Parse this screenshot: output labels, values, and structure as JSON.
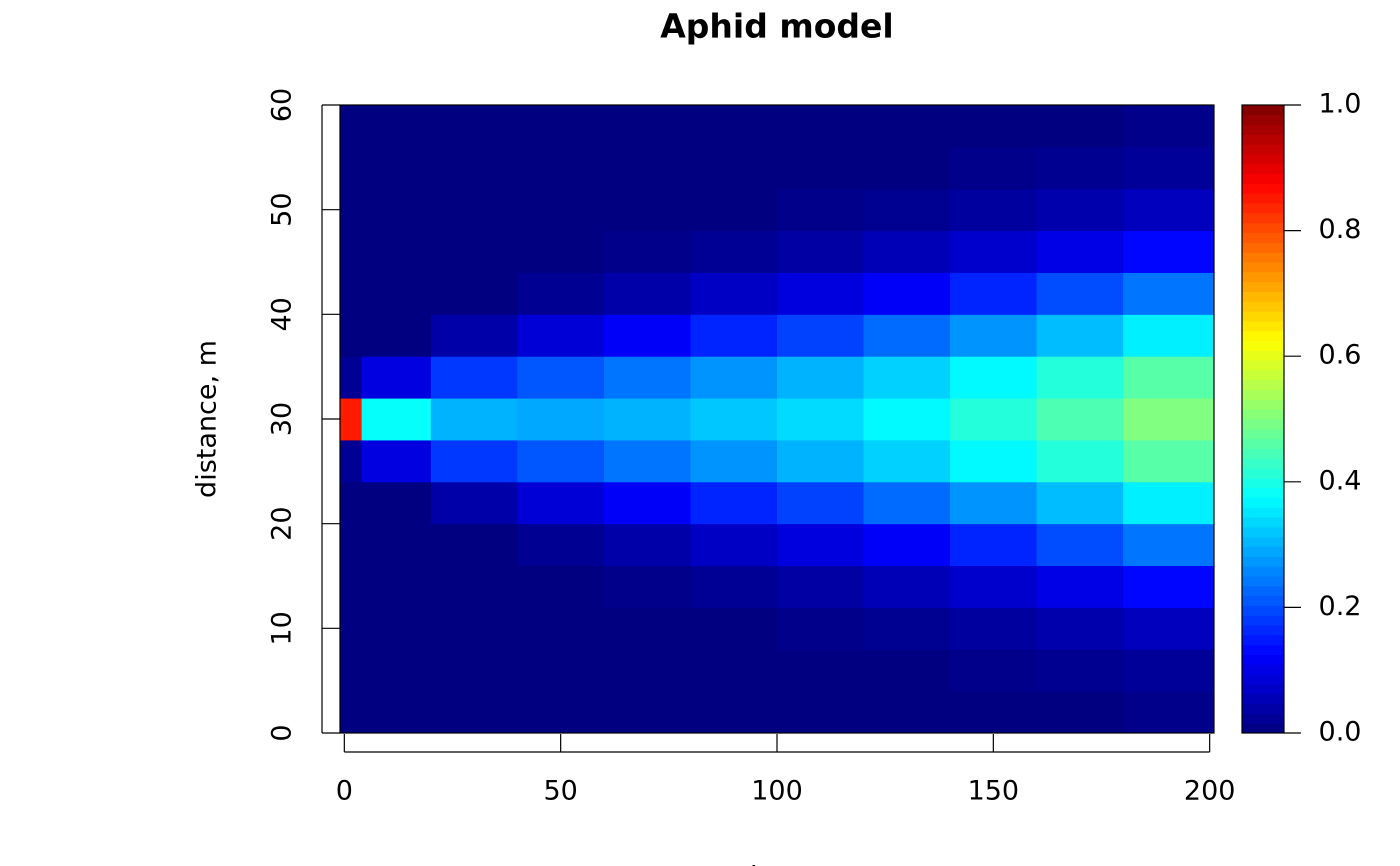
{
  "chart_data": {
    "type": "heatmap",
    "title": "Aphid model",
    "xlabel": "times",
    "ylabel": "distance, m",
    "colormap": "jet",
    "xlim": [
      -1,
      201
    ],
    "ylim": [
      0,
      60
    ],
    "xticks": [
      0,
      50,
      100,
      150,
      200
    ],
    "yticks": [
      0,
      10,
      20,
      30,
      40,
      50,
      60
    ],
    "zlim": [
      0,
      1
    ],
    "zticks": [
      {
        "value": 0,
        "label": "0.0"
      },
      0.2,
      0.4,
      0.6,
      0.8,
      {
        "value": 1,
        "label": "1.0"
      }
    ],
    "x_bins": [
      -1,
      4,
      20,
      40,
      60,
      80,
      100,
      120,
      140,
      160,
      180,
      201
    ],
    "y_bins": [
      0,
      4,
      8,
      12,
      16,
      20,
      24,
      28,
      32,
      36,
      40,
      44,
      48,
      52,
      56,
      60
    ],
    "values": [
      [
        0,
        0,
        0,
        0,
        0,
        0,
        0,
        0,
        0,
        0,
        0.01
      ],
      [
        0,
        0,
        0,
        0,
        0,
        0,
        0,
        0,
        0.01,
        0.016,
        0.025
      ],
      [
        0,
        0,
        0,
        0,
        0,
        0,
        0.01,
        0.017,
        0.03,
        0.045,
        0.06
      ],
      [
        0,
        0,
        0,
        0,
        0.01,
        0.02,
        0.035,
        0.053,
        0.075,
        0.1,
        0.13
      ],
      [
        0,
        0,
        0,
        0.018,
        0.04,
        0.067,
        0.094,
        0.12,
        0.16,
        0.2,
        0.24
      ],
      [
        0,
        0,
        0.04,
        0.085,
        0.12,
        0.16,
        0.19,
        0.23,
        0.27,
        0.31,
        0.36
      ],
      [
        0.02,
        0.095,
        0.18,
        0.21,
        0.24,
        0.27,
        0.3,
        0.33,
        0.37,
        0.41,
        0.46
      ],
      [
        0.85,
        0.38,
        0.3,
        0.29,
        0.3,
        0.32,
        0.34,
        0.37,
        0.41,
        0.45,
        0.5
      ],
      [
        0.02,
        0.095,
        0.18,
        0.21,
        0.24,
        0.27,
        0.3,
        0.33,
        0.37,
        0.41,
        0.46
      ],
      [
        0,
        0,
        0.04,
        0.085,
        0.12,
        0.16,
        0.19,
        0.23,
        0.27,
        0.31,
        0.36
      ],
      [
        0,
        0,
        0,
        0.018,
        0.04,
        0.067,
        0.094,
        0.12,
        0.16,
        0.2,
        0.24
      ],
      [
        0,
        0,
        0,
        0,
        0.01,
        0.02,
        0.035,
        0.053,
        0.075,
        0.1,
        0.13
      ],
      [
        0,
        0,
        0,
        0,
        0,
        0,
        0.01,
        0.017,
        0.03,
        0.045,
        0.06
      ],
      [
        0,
        0,
        0,
        0,
        0,
        0,
        0,
        0,
        0.01,
        0.016,
        0.025
      ],
      [
        0,
        0,
        0,
        0,
        0,
        0,
        0,
        0,
        0,
        0,
        0.01
      ]
    ]
  }
}
